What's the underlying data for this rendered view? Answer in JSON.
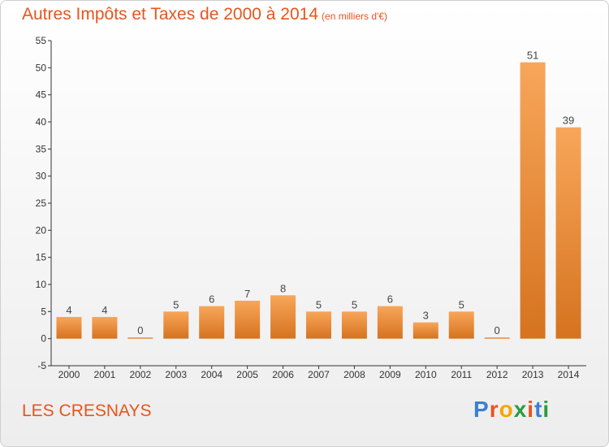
{
  "title": "Autres Impôts et Taxes de 2000 à 2014",
  "title_unit": "(en milliers d'€)",
  "commune": "LES CRESNAYS",
  "logo": {
    "text": "Proxiti",
    "letters": [
      "P",
      "r",
      "o",
      "x",
      "i",
      "t",
      "i"
    ],
    "colors": [
      "#3b7fd1",
      "#e8541c",
      "#f7a600",
      "#2e9b3e",
      "#e8541c",
      "#3b7fd1",
      "#2e9b3e"
    ]
  },
  "colors": {
    "title": "#e8541c",
    "bar_light": "#f8a65a",
    "bar_dark": "#d5731f",
    "axis": "#333333"
  },
  "chart_data": {
    "type": "bar",
    "title": "Autres Impôts et Taxes de 2000 à 2014",
    "categories": [
      "2000",
      "2001",
      "2002",
      "2003",
      "2004",
      "2005",
      "2006",
      "2007",
      "2008",
      "2009",
      "2010",
      "2011",
      "2012",
      "2013",
      "2014"
    ],
    "values": [
      4,
      4,
      0,
      5,
      6,
      7,
      8,
      5,
      5,
      6,
      3,
      5,
      0,
      51,
      39
    ],
    "ylim": [
      -5,
      55
    ],
    "yticks": [
      -5,
      0,
      5,
      10,
      15,
      20,
      25,
      30,
      35,
      40,
      45,
      50,
      55
    ],
    "grid": false,
    "legend": "none"
  }
}
